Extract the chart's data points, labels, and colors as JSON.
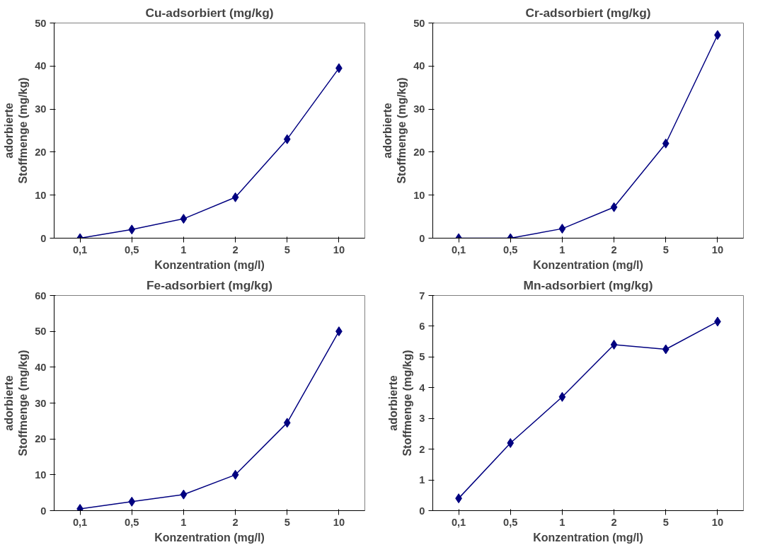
{
  "chart_data": [
    {
      "type": "line",
      "title": "Cu-adsorbiert (mg/kg)",
      "xlabel": "Konzentration (mg/l)",
      "ylabel": "adorbierte\nStoffmenge (mg/kg)",
      "categories": [
        "0,1",
        "0,5",
        "1",
        "2",
        "5",
        "10"
      ],
      "series": [
        {
          "color": "#000080",
          "values": [
            0,
            2,
            4.5,
            9.5,
            23,
            39.5
          ]
        }
      ],
      "ylim": [
        0,
        50
      ],
      "yticks": [
        0,
        10,
        20,
        30,
        40,
        50
      ],
      "marker": "diamond"
    },
    {
      "type": "line",
      "title": "Cr-adsorbiert (mg/kg)",
      "xlabel": "Konzentration (mg/l)",
      "ylabel": "adorbierte\nStoffmenge (mg/kg)",
      "categories": [
        "0,1",
        "0,5",
        "1",
        "2",
        "5",
        "10"
      ],
      "series": [
        {
          "color": "#000080",
          "values": [
            0,
            0,
            2.2,
            7.2,
            22,
            47.2
          ]
        }
      ],
      "ylim": [
        0,
        50
      ],
      "yticks": [
        0,
        10,
        20,
        30,
        40,
        50
      ],
      "marker": "diamond"
    },
    {
      "type": "line",
      "title": "Fe-adsorbiert (mg/kg)",
      "xlabel": "Konzentration (mg/l)",
      "ylabel": "adorbierte\nStoffmenge (mg/kg)",
      "categories": [
        "0,1",
        "0,5",
        "1",
        "2",
        "5",
        "10"
      ],
      "series": [
        {
          "color": "#000080",
          "values": [
            0.5,
            2.5,
            4.5,
            10,
            24.5,
            50
          ]
        }
      ],
      "ylim": [
        0,
        60
      ],
      "yticks": [
        0,
        10,
        20,
        30,
        40,
        50,
        60
      ],
      "marker": "diamond"
    },
    {
      "type": "line",
      "title": "Mn-adsorbiert (mg/kg)",
      "xlabel": "Konzentration (mg/l)",
      "ylabel": "adorbierte\nStoffmenge (mg/kg)",
      "categories": [
        "0,1",
        "0,5",
        "1",
        "2",
        "5",
        "10"
      ],
      "series": [
        {
          "color": "#000080",
          "values": [
            0.4,
            2.2,
            3.7,
            5.4,
            5.25,
            6.15
          ]
        }
      ],
      "ylim": [
        0,
        7
      ],
      "yticks": [
        0,
        1,
        2,
        3,
        4,
        5,
        6,
        7
      ],
      "marker": "diamond"
    }
  ]
}
